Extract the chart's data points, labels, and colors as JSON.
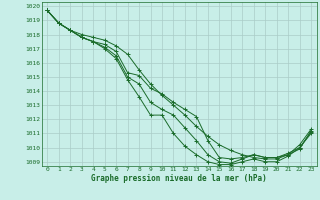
{
  "title": "Graphe pression niveau de la mer (hPa)",
  "background_color": "#c8eee8",
  "grid_color": "#aaccc8",
  "line_color": "#1a6b2a",
  "xlim": [
    -0.5,
    23.5
  ],
  "ylim": [
    1008.7,
    1020.3
  ],
  "xticks": [
    0,
    1,
    2,
    3,
    4,
    5,
    6,
    7,
    8,
    9,
    10,
    11,
    12,
    13,
    14,
    15,
    16,
    17,
    18,
    19,
    20,
    21,
    22,
    23
  ],
  "yticks": [
    1009,
    1010,
    1011,
    1012,
    1013,
    1014,
    1015,
    1016,
    1017,
    1018,
    1019,
    1020
  ],
  "series": [
    [
      1019.7,
      1018.8,
      1018.3,
      1017.8,
      1017.5,
      1017.3,
      1016.8,
      1015.3,
      1015.1,
      1014.2,
      1013.8,
      1013.2,
      1012.7,
      1012.2,
      1010.5,
      1009.3,
      1009.2,
      1009.3,
      1009.5,
      1009.3,
      1009.3,
      1009.5,
      1009.9,
      1011.2
    ],
    [
      1019.7,
      1018.8,
      1018.3,
      1017.8,
      1017.5,
      1017.1,
      1016.5,
      1015.0,
      1014.5,
      1013.2,
      1012.7,
      1012.3,
      1011.4,
      1010.5,
      1009.5,
      1009.0,
      1008.9,
      1009.2,
      1009.5,
      1009.3,
      1009.3,
      1009.6,
      1010.0,
      1011.1
    ],
    [
      1019.7,
      1018.8,
      1018.3,
      1017.8,
      1017.5,
      1017.0,
      1016.3,
      1014.8,
      1013.6,
      1012.3,
      1012.3,
      1011.0,
      1010.1,
      1009.5,
      1009.0,
      1008.8,
      1008.8,
      1009.0,
      1009.2,
      1009.0,
      1009.0,
      1009.4,
      1010.0,
      1011.0
    ],
    [
      1019.7,
      1018.8,
      1018.3,
      1018.0,
      1017.8,
      1017.6,
      1017.2,
      1016.6,
      1015.5,
      1014.5,
      1013.7,
      1013.0,
      1012.3,
      1011.5,
      1010.8,
      1010.2,
      1009.8,
      1009.5,
      1009.3,
      1009.2,
      1009.2,
      1009.5,
      1010.2,
      1011.3
    ]
  ]
}
